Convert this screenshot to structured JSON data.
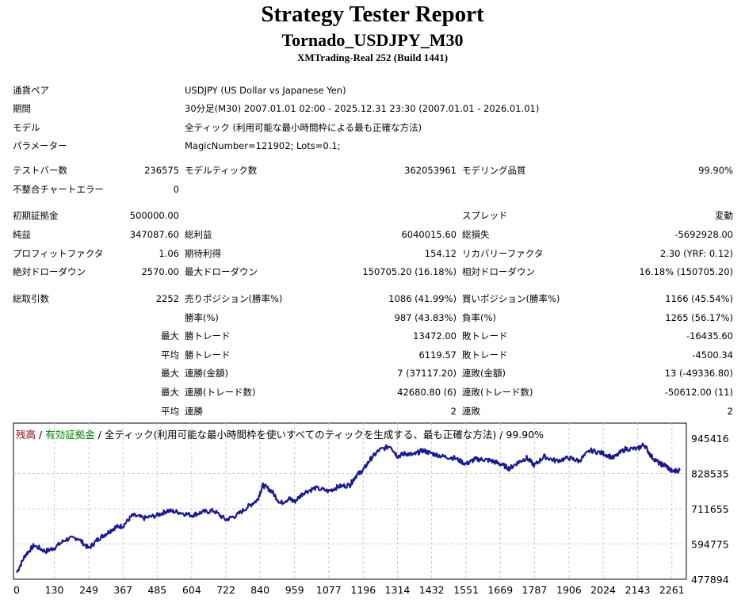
{
  "header": {
    "title": "Strategy Tester Report",
    "subtitle": "Tornado_USDJPY_M30",
    "build": "XMTrading-Real 252 (Build 1441)"
  },
  "info": [
    {
      "label": "通貨ペア",
      "value": "USDJPY (US Dollar vs Japanese Yen)"
    },
    {
      "label": "期間",
      "value": "30分足(M30) 2007.01.01 02:00 - 2025.12.31 23:30 (2007.01.01 - 2026.01.01)"
    },
    {
      "label": "モデル",
      "value": "全ティック (利用可能な最小時間枠による最も正確な方法)"
    },
    {
      "label": "パラメーター",
      "value": "MagicNumber=121902; Lots=0.1;"
    }
  ],
  "bars": {
    "test_bars_label": "テストバー数",
    "test_bars": "236575",
    "model_ticks_label": "モデルティック数",
    "model_ticks": "362053961",
    "model_quality_label": "モデリング品質",
    "model_quality": "99.90%",
    "mismatch_label": "不整合チャートエラー",
    "mismatch": "0"
  },
  "stats": {
    "initial_deposit_label": "初期証拠金",
    "initial_deposit": "500000.00",
    "spread_label": "スプレッド",
    "spread": "変動",
    "net_profit_label": "純益",
    "net_profit": "347087.60",
    "gross_profit_label": "総利益",
    "gross_profit": "6040015.60",
    "gross_loss_label": "総損失",
    "gross_loss": "-5692928.00",
    "profit_factor_label": "プロフィットファクタ",
    "profit_factor": "1.06",
    "expected_payoff_label": "期待利得",
    "expected_payoff": "154.12",
    "recovery_factor_label": "リカバリーファクタ",
    "recovery_factor": "2.30 (YRF: 0.12)",
    "abs_dd_label": "絶対ドローダウン",
    "abs_dd": "2570.00",
    "max_dd_label": "最大ドローダウン",
    "max_dd": "150705.20 (16.18%)",
    "rel_dd_label": "相対ドローダウン",
    "rel_dd": "16.18% (150705.20)"
  },
  "trades": {
    "total_label": "総取引数",
    "total": "2252",
    "short_label": "売りポジション(勝率%)",
    "short": "1086 (41.99%)",
    "long_label": "買いポジション(勝率%)",
    "long": "1166 (45.54%)",
    "win_pct_label": "勝率(%)",
    "win_pct": "987 (43.83%)",
    "loss_pct_label": "負率(%)",
    "loss_pct": "1265 (56.17%)",
    "max_label": "最大",
    "avg_label": "平均",
    "win_trade_label": "勝トレード",
    "loss_trade_label": "敗トレード",
    "max_win": "13472.00",
    "max_loss": "-16435.60",
    "avg_win": "6119.57",
    "avg_loss": "-4500.34",
    "cons_win_amt_label": "連勝(金額)",
    "cons_win_amt": "7 (37117.20)",
    "cons_loss_amt_label": "連敗(金額)",
    "cons_loss_amt": "13 (-49336.80)",
    "cons_win_cnt_label": "連勝(トレード数)",
    "cons_win_cnt": "42680.80 (6)",
    "cons_loss_cnt_label": "連敗(トレード数)",
    "cons_loss_cnt": "-50612.00 (11)",
    "avg_cons_win_label": "連勝",
    "avg_cons_win": "2",
    "avg_cons_loss_label": "連敗",
    "avg_cons_loss": "2"
  },
  "chart_legend": {
    "balance": "残高",
    "sep1": " / ",
    "equity": "有効証拠金",
    "rest": " / 全ティック(利用可能な最小時間枠を使いすべてのティックを生成する、最も正確な方法) / 99.90%"
  },
  "colors": {
    "line": "#1a1a8c",
    "grid": "#c8c8c8",
    "legend_balance": "#8b0000",
    "legend_equity": "#008000"
  },
  "chart_data": {
    "type": "line",
    "ylim": [
      477894,
      945416
    ],
    "yticks": [
      "945416",
      "828535",
      "711655",
      "594775",
      "477894"
    ],
    "xticks": [
      "0",
      "130",
      "249",
      "367",
      "485",
      "604",
      "722",
      "840",
      "959",
      "1077",
      "1196",
      "1314",
      "1432",
      "1551",
      "1669",
      "1787",
      "1906",
      "2024",
      "2143",
      "2261"
    ],
    "xlim": [
      0,
      2300
    ],
    "series": [
      {
        "x": [
          0,
          30,
          60,
          100,
          130,
          170,
          210,
          249,
          280,
          310,
          340,
          367,
          400,
          440,
          485,
          520,
          560,
          604,
          640,
          680,
          722,
          760,
          800,
          830,
          850,
          880,
          910,
          940,
          959,
          990,
          1030,
          1077,
          1110,
          1150,
          1170,
          1196,
          1220,
          1250,
          1290,
          1314,
          1340,
          1370,
          1400,
          1432,
          1470,
          1510,
          1551,
          1580,
          1610,
          1640,
          1669,
          1700,
          1730,
          1760,
          1787,
          1820,
          1860,
          1906,
          1940,
          1980,
          2024,
          2060,
          2100,
          2143,
          2165,
          2190,
          2220,
          2240,
          2261,
          2290
        ],
        "values": [
          500000,
          558000,
          590000,
          570000,
          582000,
          610000,
          615000,
          580000,
          610000,
          630000,
          650000,
          655000,
          690000,
          680000,
          690000,
          705000,
          700000,
          690000,
          700000,
          705000,
          675000,
          690000,
          720000,
          740000,
          790000,
          770000,
          730000,
          745000,
          735000,
          765000,
          780000,
          770000,
          785000,
          790000,
          820000,
          840000,
          875000,
          905000,
          920000,
          885000,
          895000,
          890000,
          905000,
          895000,
          885000,
          880000,
          860000,
          875000,
          875000,
          870000,
          860000,
          845000,
          865000,
          880000,
          855000,
          885000,
          870000,
          880000,
          870000,
          905000,
          895000,
          880000,
          910000,
          910000,
          925000,
          885000,
          860000,
          855000,
          835000,
          840000
        ]
      }
    ],
    "grid": true
  }
}
